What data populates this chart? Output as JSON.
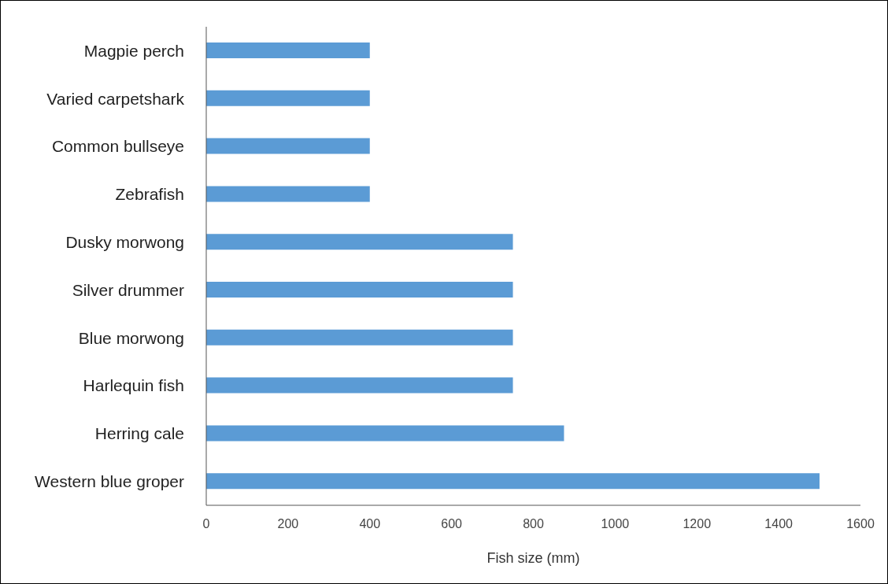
{
  "chart_data": {
    "type": "bar",
    "orientation": "horizontal",
    "xlabel": "Fish size (mm)",
    "categories": [
      "Magpie perch",
      "Varied carpetshark",
      "Common bullseye",
      "Zebrafish",
      "Dusky morwong",
      "Silver drummer",
      "Blue morwong",
      "Harlequin fish",
      "Herring cale",
      "Western blue groper"
    ],
    "values": [
      400,
      400,
      400,
      400,
      750,
      750,
      750,
      750,
      875,
      1500
    ],
    "color": "#5b9bd5",
    "xlim": [
      0,
      1600
    ],
    "xticks": [
      0,
      200,
      400,
      600,
      800,
      1000,
      1200,
      1400,
      1600
    ],
    "grid": false,
    "legend": false
  }
}
